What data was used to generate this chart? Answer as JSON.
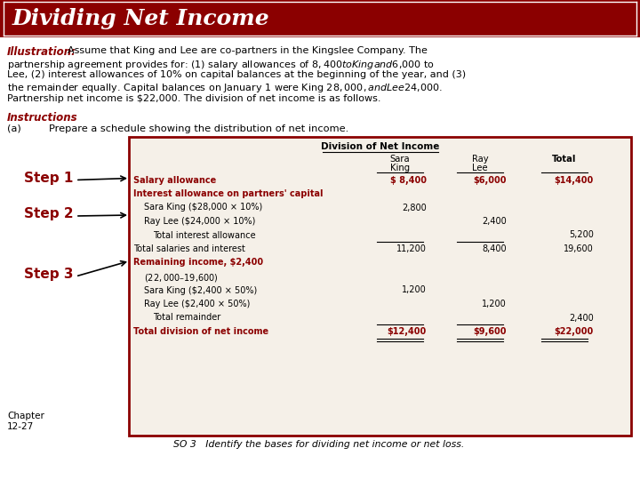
{
  "title": "Dividing Net Income",
  "title_bg": "#8B0000",
  "title_color": "#FFFFFF",
  "body_bg": "#FFFFFF",
  "illustration_label": "Illustration:",
  "illustration_text_full": "Assume that King and Lee are co-partners in the Kingslee Company. The partnership agreement provides for: (1) salary allowances of $8,400 to King and $6,000 to Lee, (2) interest allowances of 10% on capital balances at the beginning of the year, and (3) the remainder equally. Capital balances on January 1 were King $28,000, and Lee $24,000. Partnership net income is $22,000. The division of net income is as follows.",
  "illustration_lines": [
    "Assume that King and Lee are co-partners in the Kingslee Company. The",
    "partnership agreement provides for: (1) salary allowances of $8,400 to King and $6,000 to",
    "Lee, (2) interest allowances of 10% on capital balances at the beginning of the year, and (3)",
    "the remainder equally. Capital balances on January 1 were King $28,000, and Lee $24,000.",
    "Partnership net income is $22,000. The division of net income is as follows."
  ],
  "instructions_label": "Instructions",
  "instruction_a_prefix": "(a)",
  "instruction_a_text": "Prepare a schedule showing the distribution of net income.",
  "table_title": "Division of Net Income",
  "accent_color": "#8B0000",
  "table_bg": "#F5F0E8",
  "table_border": "#8B0000",
  "col_keys": [
    "king",
    "lee",
    "total"
  ],
  "col_header_line1": [
    "Sara",
    "Ray",
    "Total"
  ],
  "col_header_line2": [
    "King",
    "Lee",
    ""
  ],
  "rows": [
    {
      "label": "Salary allowance",
      "indent": 0,
      "bold": true,
      "red": true,
      "king": "$ 8,400",
      "lee": "$6,000",
      "total": "$14,400",
      "ul_king": false,
      "ul_lee": false,
      "ul_total": false,
      "double": false
    },
    {
      "label": "Interest allowance on partners' capital",
      "indent": 0,
      "bold": true,
      "red": true,
      "king": "",
      "lee": "",
      "total": "",
      "ul_king": false,
      "ul_lee": false,
      "ul_total": false,
      "double": false
    },
    {
      "label": "Sara King ($28,000 × 10%)",
      "indent": 1,
      "bold": false,
      "red": false,
      "king": "2,800",
      "lee": "",
      "total": "",
      "ul_king": false,
      "ul_lee": false,
      "ul_total": false,
      "double": false
    },
    {
      "label": "Ray Lee ($24,000 × 10%)",
      "indent": 1,
      "bold": false,
      "red": false,
      "king": "",
      "lee": "2,400",
      "total": "",
      "ul_king": false,
      "ul_lee": false,
      "ul_total": false,
      "double": false
    },
    {
      "label": "Total interest allowance",
      "indent": 2,
      "bold": false,
      "red": false,
      "king": "",
      "lee": "",
      "total": "5,200",
      "ul_king": true,
      "ul_lee": true,
      "ul_total": false,
      "double": false
    },
    {
      "label": "Total salaries and interest",
      "indent": 0,
      "bold": false,
      "red": false,
      "king": "11,200",
      "lee": "8,400",
      "total": "19,600",
      "ul_king": false,
      "ul_lee": false,
      "ul_total": false,
      "double": false
    },
    {
      "label": "Remaining income, $2,400",
      "indent": 0,
      "bold": true,
      "red": true,
      "king": "",
      "lee": "",
      "total": "",
      "ul_king": false,
      "ul_lee": false,
      "ul_total": false,
      "double": false
    },
    {
      "label": "($22,000 – $19,600)",
      "indent": 1,
      "bold": false,
      "red": false,
      "king": "",
      "lee": "",
      "total": "",
      "ul_king": false,
      "ul_lee": false,
      "ul_total": false,
      "double": false
    },
    {
      "label": "Sara King ($2,400 × 50%)",
      "indent": 1,
      "bold": false,
      "red": false,
      "king": "1,200",
      "lee": "",
      "total": "",
      "ul_king": false,
      "ul_lee": false,
      "ul_total": false,
      "double": false
    },
    {
      "label": "Ray Lee ($2,400 × 50%)",
      "indent": 1,
      "bold": false,
      "red": false,
      "king": "",
      "lee": "1,200",
      "total": "",
      "ul_king": false,
      "ul_lee": false,
      "ul_total": false,
      "double": false
    },
    {
      "label": "Total remainder",
      "indent": 2,
      "bold": false,
      "red": false,
      "king": "",
      "lee": "",
      "total": "2,400",
      "ul_king": true,
      "ul_lee": true,
      "ul_total": false,
      "double": false
    },
    {
      "label": "Total division of net income",
      "indent": 0,
      "bold": true,
      "red": true,
      "king": "$12,400",
      "lee": "$9,600",
      "total": "$22,000",
      "ul_king": true,
      "ul_lee": true,
      "ul_total": true,
      "double": true
    }
  ],
  "step_labels": [
    "Step 1",
    "Step 2",
    "Step 3"
  ],
  "step_row_indices": [
    0,
    3,
    7
  ],
  "chapter_text": "Chapter\n12-27",
  "footer_text": "SO 3   Identify the bases for dividing net income or net loss."
}
